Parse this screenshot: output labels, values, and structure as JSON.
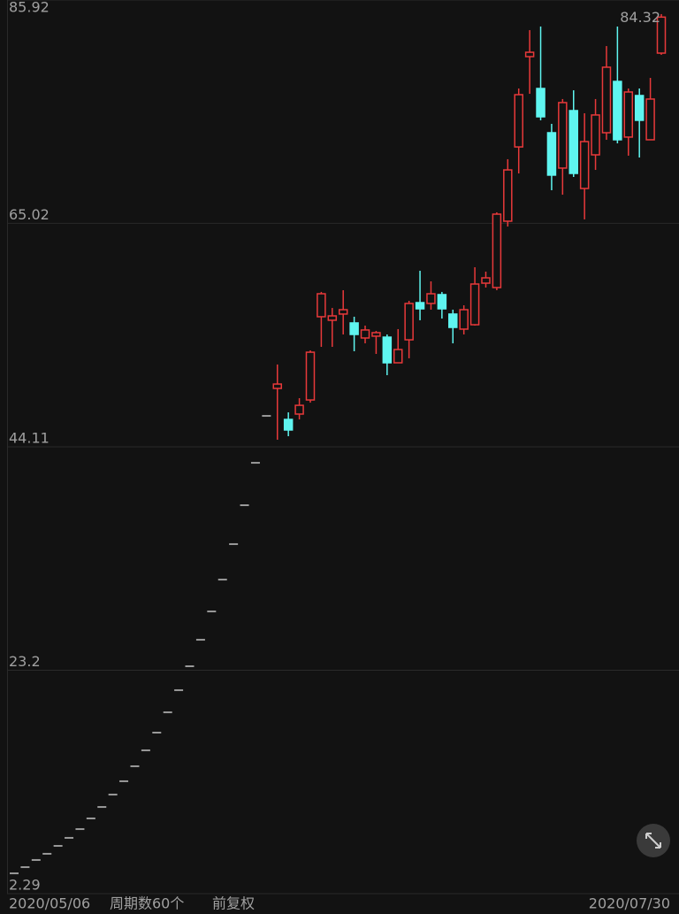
{
  "chart_data": {
    "type": "candlestick",
    "categories": [
      "2020/05/06",
      null,
      null,
      null,
      null,
      null,
      null,
      null,
      null,
      null,
      null,
      null,
      null,
      null,
      null,
      null,
      null,
      null,
      null,
      null,
      null,
      null,
      null,
      null,
      null,
      null,
      null,
      null,
      null,
      null,
      null,
      null,
      null,
      null,
      null,
      null,
      null,
      null,
      null,
      null,
      null,
      null,
      null,
      null,
      null,
      null,
      null,
      null,
      null,
      null,
      null,
      null,
      null,
      null,
      null,
      null,
      null,
      null,
      null,
      "2020/07/30"
    ],
    "open": [
      4.19,
      4.77,
      5.44,
      6.02,
      6.76,
      7.51,
      8.33,
      9.33,
      10.4,
      11.56,
      12.81,
      14.21,
      15.7,
      17.36,
      19.26,
      21.33,
      23.57,
      26.05,
      28.7,
      31.68,
      35.0,
      38.64,
      42.61,
      47.0,
      49.57,
      46.67,
      47.17,
      48.49,
      56.28,
      55.95,
      56.53,
      55.7,
      54.29,
      54.46,
      54.37,
      51.97,
      54.12,
      57.6,
      57.52,
      58.35,
      56.53,
      55.12,
      55.53,
      59.42,
      59.01,
      65.22,
      72.17,
      80.62,
      77.64,
      73.5,
      70.19,
      75.57,
      68.28,
      71.43,
      73.5,
      78.3,
      73.09,
      76.98,
      72.84,
      80.95
    ],
    "high": [
      4.19,
      4.77,
      5.44,
      6.02,
      6.76,
      7.51,
      8.33,
      9.33,
      10.4,
      11.56,
      12.81,
      14.21,
      15.7,
      17.36,
      19.26,
      21.33,
      23.57,
      26.05,
      28.7,
      31.68,
      35.0,
      38.64,
      42.61,
      47.0,
      51.81,
      47.33,
      48.66,
      53.13,
      58.6,
      57.1,
      58.76,
      56.28,
      55.45,
      54.95,
      54.62,
      55.12,
      57.77,
      60.58,
      59.59,
      58.6,
      56.94,
      57.35,
      60.91,
      60.5,
      66.05,
      71.02,
      77.64,
      83.1,
      83.44,
      74.33,
      76.65,
      77.47,
      75.32,
      76.65,
      81.61,
      83.44,
      77.64,
      77.64,
      78.63,
      84.6
    ],
    "low": [
      4.19,
      4.77,
      5.44,
      6.02,
      6.76,
      7.51,
      8.33,
      9.33,
      10.4,
      11.56,
      12.81,
      14.21,
      15.7,
      17.36,
      19.26,
      21.33,
      23.57,
      26.05,
      28.7,
      31.68,
      35.0,
      38.64,
      42.61,
      47.0,
      44.77,
      45.1,
      46.67,
      48.24,
      53.46,
      53.46,
      54.62,
      53.05,
      53.79,
      52.8,
      50.81,
      51.97,
      52.39,
      55.95,
      56.94,
      56.11,
      53.79,
      54.62,
      55.45,
      59.01,
      58.76,
      64.72,
      69.69,
      77.14,
      74.66,
      68.12,
      67.7,
      69.36,
      65.39,
      70.02,
      72.84,
      72.51,
      71.35,
      71.18,
      72.84,
      80.79
    ],
    "close": [
      4.19,
      4.77,
      5.44,
      6.02,
      6.76,
      7.51,
      8.33,
      9.33,
      10.4,
      11.56,
      12.81,
      14.21,
      15.7,
      17.36,
      19.26,
      21.33,
      23.57,
      26.05,
      28.7,
      31.68,
      35.0,
      38.64,
      42.61,
      47.0,
      49.98,
      45.68,
      47.99,
      52.96,
      58.43,
      56.36,
      56.94,
      54.62,
      55.04,
      54.79,
      51.97,
      53.21,
      57.52,
      57.02,
      58.43,
      57.02,
      55.28,
      56.94,
      59.34,
      59.92,
      65.88,
      70.02,
      77.06,
      81.03,
      74.99,
      69.53,
      76.32,
      69.69,
      72.67,
      75.16,
      79.63,
      72.84,
      77.31,
      74.66,
      76.65,
      84.32
    ],
    "up_color": "#e8393a",
    "down_color": "#5ff5f0",
    "flat_color": "#9a9a9a",
    "ylim": [
      2.29,
      85.92
    ],
    "yticks": [
      85.92,
      65.02,
      44.11,
      23.2,
      2.29
    ],
    "grid": true,
    "last_price": 84.32,
    "period_label": "周期数60个",
    "adjust_label": "前复权"
  }
}
